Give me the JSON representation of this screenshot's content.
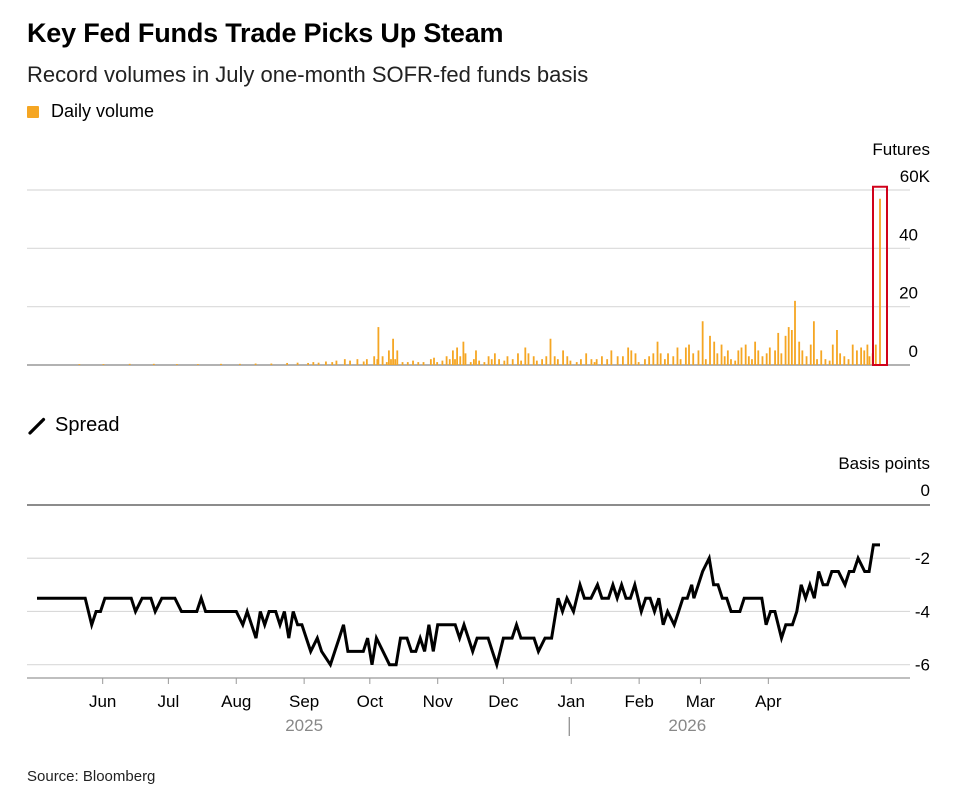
{
  "header": {
    "title": "Key Fed Funds Trade Picks Up Steam",
    "subtitle": "Record volumes in July one-month SOFR-fed funds basis",
    "legend_volume": "Daily volume",
    "legend_spread": "Spread",
    "source": "Source: Bloomberg"
  },
  "colors": {
    "bar": "#f5a623",
    "line": "#000000",
    "grid": "#d9d9d9",
    "highlight": "#d0021b",
    "muted_text": "#888888"
  },
  "chart_data": [
    {
      "type": "bar",
      "title": "Daily volume",
      "unit_label": "Futures",
      "ylim": [
        0,
        60
      ],
      "yticks": [
        {
          "value": 60,
          "label": "60K"
        },
        {
          "value": 40,
          "label": "40"
        },
        {
          "value": 20,
          "label": "20"
        },
        {
          "value": 0,
          "label": "0"
        }
      ],
      "x_range_days": [
        0,
        335
      ],
      "bars": [
        [
          47,
          0.3
        ],
        [
          70,
          0.3
        ],
        [
          95,
          0.4
        ],
        [
          118,
          0.4
        ],
        [
          140,
          0.3
        ],
        [
          160,
          0.3
        ],
        [
          182,
          0.4
        ],
        [
          200,
          0.4
        ],
        [
          215,
          0.5
        ],
        [
          230,
          0.5
        ],
        [
          245,
          0.7
        ],
        [
          255,
          0.8
        ],
        [
          265,
          0.7
        ],
        [
          270,
          1
        ],
        [
          275,
          0.8
        ],
        [
          282,
          1.2
        ],
        [
          288,
          1
        ],
        [
          292,
          1.5
        ],
        [
          300,
          2
        ],
        [
          305,
          1.5
        ],
        [
          312,
          2
        ],
        [
          318,
          1.2
        ],
        [
          321,
          2
        ],
        [
          328,
          3
        ],
        [
          331,
          2
        ],
        [
          332,
          13
        ],
        [
          336,
          3
        ],
        [
          340,
          1
        ],
        [
          342,
          5
        ],
        [
          344,
          2
        ],
        [
          346,
          9
        ],
        [
          348,
          2
        ],
        [
          350,
          5
        ],
        [
          355,
          1
        ],
        [
          360,
          1
        ],
        [
          365,
          1.5
        ],
        [
          370,
          1
        ],
        [
          375,
          1
        ],
        [
          382,
          2
        ],
        [
          385,
          2.5
        ],
        [
          388,
          1
        ],
        [
          393,
          1.5
        ],
        [
          397,
          3
        ],
        [
          400,
          2
        ],
        [
          403,
          5
        ],
        [
          405,
          2
        ],
        [
          407,
          6
        ],
        [
          410,
          3
        ],
        [
          413,
          8
        ],
        [
          415,
          4
        ],
        [
          420,
          1
        ],
        [
          423,
          2
        ],
        [
          425,
          5
        ],
        [
          428,
          1.5
        ],
        [
          433,
          1
        ],
        [
          437,
          3
        ],
        [
          440,
          2
        ],
        [
          443,
          4
        ],
        [
          447,
          2
        ],
        [
          452,
          1.5
        ],
        [
          455,
          3
        ],
        [
          460,
          2
        ],
        [
          465,
          4
        ],
        [
          468,
          1.5
        ],
        [
          472,
          6
        ],
        [
          475,
          4
        ],
        [
          480,
          3
        ],
        [
          483,
          1.5
        ],
        [
          488,
          2
        ],
        [
          492,
          3
        ],
        [
          496,
          9
        ],
        [
          500,
          3
        ],
        [
          503,
          2
        ],
        [
          508,
          5
        ],
        [
          512,
          3
        ],
        [
          515,
          1.5
        ],
        [
          521,
          1
        ],
        [
          525,
          2
        ],
        [
          530,
          4
        ],
        [
          535,
          2
        ],
        [
          538,
          1
        ],
        [
          540,
          2
        ],
        [
          545,
          3
        ],
        [
          550,
          2
        ],
        [
          554,
          5
        ],
        [
          560,
          3
        ],
        [
          565,
          3
        ],
        [
          570,
          6
        ],
        [
          573,
          5
        ],
        [
          577,
          4
        ],
        [
          580,
          1
        ],
        [
          586,
          2
        ],
        [
          590,
          3
        ],
        [
          594,
          4
        ],
        [
          598,
          8
        ],
        [
          601,
          4
        ],
        [
          605,
          2
        ],
        [
          608,
          4
        ],
        [
          613,
          3
        ],
        [
          617,
          6
        ],
        [
          620,
          2
        ],
        [
          625,
          6
        ],
        [
          628,
          7
        ],
        [
          632,
          4
        ],
        [
          637,
          5
        ],
        [
          641,
          15
        ],
        [
          644,
          2
        ],
        [
          648,
          10
        ],
        [
          652,
          8
        ],
        [
          655,
          4
        ],
        [
          659,
          7
        ],
        [
          662,
          3
        ],
        [
          665,
          5
        ],
        [
          668,
          2
        ],
        [
          672,
          1.5
        ],
        [
          675,
          5
        ],
        [
          678,
          6
        ],
        [
          682,
          7
        ],
        [
          685,
          3
        ],
        [
          688,
          2
        ],
        [
          691,
          8
        ],
        [
          694,
          5
        ],
        [
          698,
          3
        ],
        [
          702,
          4
        ],
        [
          705,
          6
        ],
        [
          710,
          5
        ],
        [
          713,
          11
        ],
        [
          716,
          4
        ],
        [
          720,
          10
        ],
        [
          723,
          13
        ],
        [
          726,
          12
        ],
        [
          729,
          22
        ],
        [
          733,
          8
        ],
        [
          736,
          5
        ],
        [
          740,
          3
        ],
        [
          744,
          7
        ],
        [
          747,
          15
        ],
        [
          750,
          2
        ],
        [
          754,
          5
        ],
        [
          758,
          2
        ],
        [
          762,
          1.5
        ],
        [
          765,
          7
        ],
        [
          769,
          12
        ],
        [
          772,
          4
        ],
        [
          776,
          3
        ],
        [
          780,
          2
        ],
        [
          784,
          7
        ],
        [
          788,
          5
        ],
        [
          792,
          6
        ],
        [
          795,
          5
        ],
        [
          798,
          7
        ],
        [
          800,
          3
        ],
        [
          803,
          4
        ],
        [
          806,
          7
        ],
        [
          810,
          57
        ]
      ]
    },
    {
      "type": "line",
      "title": "Spread",
      "unit_label": "Basis points",
      "ylim": [
        -6.5,
        0
      ],
      "yticks": [
        {
          "value": 0,
          "label": "0"
        },
        {
          "value": -2,
          "label": "-2"
        },
        {
          "value": -4,
          "label": "-4"
        },
        {
          "value": -6,
          "label": "-6"
        }
      ],
      "xlabel_months": [
        {
          "label": "Jun",
          "day": 30
        },
        {
          "label": "Jul",
          "day": 60
        },
        {
          "label": "Aug",
          "day": 91
        },
        {
          "label": "Sep",
          "day": 122
        },
        {
          "label": "Oct",
          "day": 152
        },
        {
          "label": "Nov",
          "day": 183
        },
        {
          "label": "Dec",
          "day": 213
        },
        {
          "label": "Jan",
          "day": 244
        },
        {
          "label": "Feb",
          "day": 275
        },
        {
          "label": "Mar",
          "day": 303
        },
        {
          "label": "Apr",
          "day": 334
        }
      ],
      "years": [
        {
          "label": "2025",
          "day": 122
        },
        {
          "label": "2026",
          "day": 297
        }
      ],
      "series": [
        [
          0,
          -3.5
        ],
        [
          22,
          -3.5
        ],
        [
          25,
          -4.5
        ],
        [
          27,
          -4
        ],
        [
          29,
          -4
        ],
        [
          31,
          -3.5
        ],
        [
          43,
          -3.5
        ],
        [
          45,
          -4
        ],
        [
          48,
          -3.5
        ],
        [
          50,
          -3.5
        ],
        [
          52,
          -3.5
        ],
        [
          54,
          -4
        ],
        [
          57,
          -3.5
        ],
        [
          59,
          -3.5
        ],
        [
          63,
          -3.5
        ],
        [
          66,
          -4
        ],
        [
          73,
          -4
        ],
        [
          75,
          -3.5
        ],
        [
          77,
          -4
        ],
        [
          80,
          -4
        ],
        [
          91,
          -4
        ],
        [
          94,
          -4.5
        ],
        [
          96,
          -4
        ],
        [
          98,
          -4.5
        ],
        [
          100,
          -5
        ],
        [
          102,
          -4
        ],
        [
          104,
          -4.5
        ],
        [
          106,
          -4
        ],
        [
          109,
          -4
        ],
        [
          111,
          -4.5
        ],
        [
          113,
          -4
        ],
        [
          115,
          -5
        ],
        [
          117,
          -4
        ],
        [
          119,
          -4.5
        ],
        [
          121,
          -4.5
        ],
        [
          123,
          -5
        ],
        [
          125,
          -5.5
        ],
        [
          128,
          -5
        ],
        [
          130,
          -5.5
        ],
        [
          134,
          -6
        ],
        [
          136,
          -5.5
        ],
        [
          138,
          -5
        ],
        [
          140,
          -4.5
        ],
        [
          142,
          -5.5
        ],
        [
          149,
          -5.5
        ],
        [
          151,
          -5
        ],
        [
          153,
          -6
        ],
        [
          155,
          -5
        ],
        [
          158,
          -5.5
        ],
        [
          161,
          -6
        ],
        [
          164,
          -6
        ],
        [
          166,
          -5
        ],
        [
          169,
          -5
        ],
        [
          171,
          -5.5
        ],
        [
          173,
          -5.5
        ],
        [
          175,
          -5
        ],
        [
          177,
          -5.5
        ],
        [
          179,
          -4.5
        ],
        [
          181,
          -5.5
        ],
        [
          183,
          -4.5
        ],
        [
          191,
          -4.5
        ],
        [
          193,
          -5
        ],
        [
          195,
          -4.5
        ],
        [
          197,
          -5
        ],
        [
          199,
          -5.5
        ],
        [
          201,
          -5
        ],
        [
          206,
          -5
        ],
        [
          208,
          -5.5
        ],
        [
          210,
          -6
        ],
        [
          213,
          -5
        ],
        [
          217,
          -5
        ],
        [
          219,
          -4.5
        ],
        [
          221,
          -5
        ],
        [
          227,
          -5
        ],
        [
          229,
          -5.5
        ],
        [
          232,
          -5
        ],
        [
          235,
          -5
        ],
        [
          238,
          -3.5
        ],
        [
          240,
          -4
        ],
        [
          242,
          -3.5
        ],
        [
          245,
          -4
        ],
        [
          248,
          -3
        ],
        [
          250,
          -3.5
        ],
        [
          253,
          -3.5
        ],
        [
          256,
          -3
        ],
        [
          258,
          -3.5
        ],
        [
          261,
          -3.5
        ],
        [
          263,
          -3
        ],
        [
          265,
          -3.5
        ],
        [
          267,
          -3
        ],
        [
          269,
          -3.5
        ],
        [
          271,
          -3.5
        ],
        [
          273,
          -3
        ],
        [
          276,
          -4
        ],
        [
          278,
          -3.5
        ],
        [
          280,
          -3.5
        ],
        [
          282,
          -4
        ],
        [
          284,
          -3.5
        ],
        [
          286,
          -4.5
        ],
        [
          288,
          -4
        ],
        [
          291,
          -4.5
        ],
        [
          293,
          -4
        ],
        [
          295,
          -3.5
        ],
        [
          297,
          -3.5
        ],
        [
          299,
          -3
        ],
        [
          300,
          -3.5
        ],
        [
          302,
          -3
        ],
        [
          304,
          -2.5
        ],
        [
          307,
          -2
        ],
        [
          309,
          -3
        ],
        [
          311,
          -3
        ],
        [
          313,
          -3.5
        ],
        [
          315,
          -3.5
        ],
        [
          317,
          -4
        ],
        [
          321,
          -4
        ],
        [
          323,
          -3.5
        ],
        [
          331,
          -3.5
        ],
        [
          333,
          -4.5
        ],
        [
          335,
          -4
        ],
        [
          337,
          -4
        ],
        [
          340,
          -5
        ],
        [
          342,
          -4.5
        ],
        [
          345,
          -4.5
        ],
        [
          347,
          -4
        ],
        [
          349,
          -3
        ],
        [
          351,
          -3.5
        ],
        [
          353,
          -3
        ],
        [
          355,
          -3.5
        ],
        [
          357,
          -2.5
        ],
        [
          359,
          -3
        ],
        [
          361,
          -3
        ],
        [
          363,
          -2.5
        ],
        [
          366,
          -2.5
        ],
        [
          369,
          -3
        ],
        [
          371,
          -2.5
        ],
        [
          373,
          -2.5
        ],
        [
          375,
          -2
        ],
        [
          378,
          -2.5
        ],
        [
          380,
          -2.5
        ],
        [
          382,
          -1.5
        ],
        [
          385,
          -1.5
        ]
      ]
    }
  ]
}
